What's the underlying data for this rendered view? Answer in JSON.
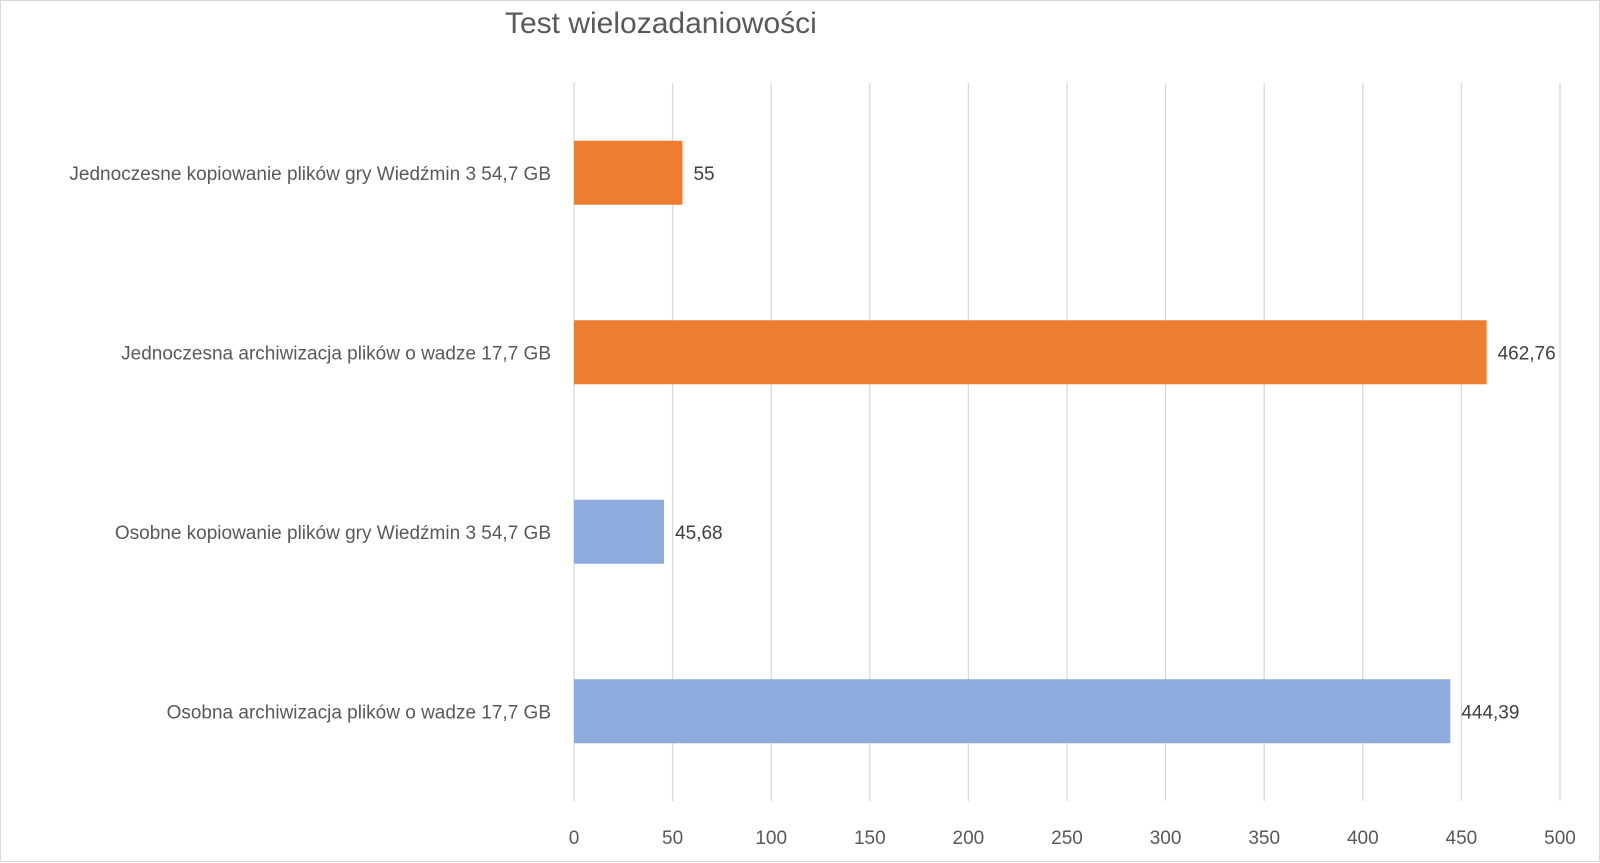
{
  "chart_data": {
    "type": "bar",
    "orientation": "horizontal",
    "title": "Test wielozadaniowości",
    "xlabel": "",
    "ylabel": "",
    "xlim": [
      0,
      500
    ],
    "x_ticks": [
      0,
      50,
      100,
      150,
      200,
      250,
      300,
      350,
      400,
      450,
      500
    ],
    "grid": true,
    "legend": "none",
    "bars": [
      {
        "category": "Jednoczesne kopiowanie plików gry Wiedźmin 3 54,7 GB",
        "value": 55,
        "label": "55",
        "color": "#ed7d31"
      },
      {
        "category": "Jednoczesna archiwizacja plików o wadze 17,7 GB",
        "value": 462.76,
        "label": "462,76",
        "color": "#ed7d31"
      },
      {
        "category": "Osobne kopiowanie plików gry Wiedźmin 3 54,7 GB",
        "value": 45.68,
        "label": "45,68",
        "color": "#8faadc"
      },
      {
        "category": "Osobna archiwizacja plików o wadze 17,7 GB",
        "value": 444.39,
        "label": "444,39",
        "color": "#8faadc"
      }
    ]
  }
}
